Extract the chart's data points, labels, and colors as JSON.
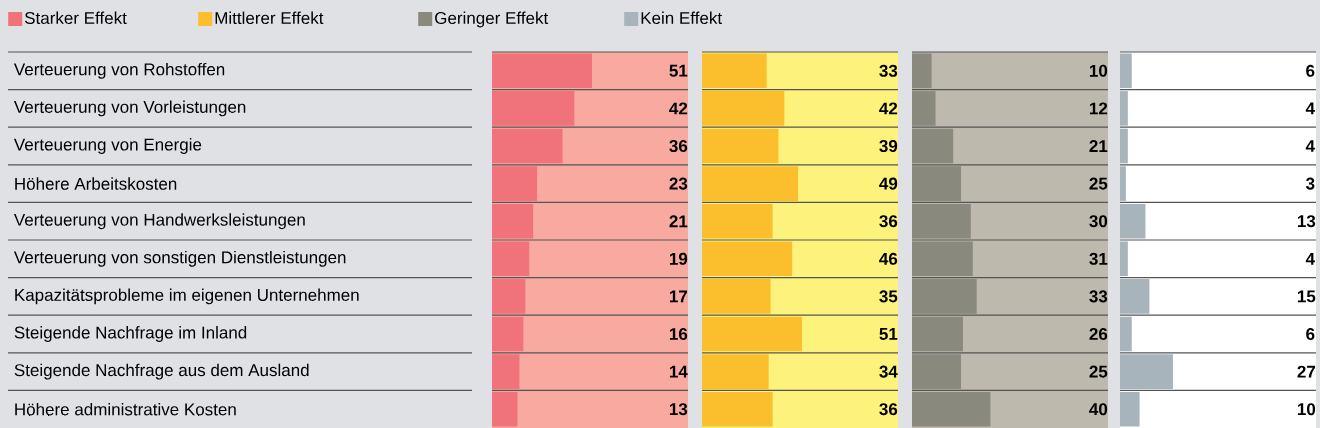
{
  "chart_data": [
    {
      "type": "bar",
      "orientation": "horizontal",
      "categories": [
        "Verteuerung von Rohstoffen",
        "Verteuerung von Vorleistungen",
        "Verteuerung von Energie",
        "Höhere Arbeitskosten",
        "Verteuerung von Handwerksleistungen",
        "Verteuerung von sonstigen Dienstleistungen",
        "Kapazitätsprobleme im eigenen Unternehmen",
        "Steigende Nachfrage im Inland",
        "Steigende Nachfrage aus dem Ausland",
        "Höhere administrative Kosten"
      ],
      "series": [
        {
          "name": "Starker Effekt",
          "color": "#f0727a",
          "values": [
            51,
            42,
            36,
            23,
            21,
            19,
            17,
            16,
            14,
            13
          ]
        }
      ],
      "xlim": [
        0,
        100
      ],
      "tick_labels": "y",
      "data_labels": true,
      "legend": "top"
    },
    {
      "type": "bar",
      "orientation": "horizontal",
      "categories": [
        null,
        null,
        null,
        null,
        null,
        null,
        null,
        null,
        null,
        null
      ],
      "series": [
        {
          "name": "Mittlerer Effekt",
          "color": "#fbbf2e",
          "values": [
            33,
            42,
            39,
            49,
            36,
            46,
            35,
            51,
            34,
            36
          ]
        }
      ],
      "xlim": [
        0,
        100
      ],
      "tick_labels": false,
      "data_labels": true,
      "legend": "top"
    },
    {
      "type": "bar",
      "orientation": "horizontal",
      "categories": [
        null,
        null,
        null,
        null,
        null,
        null,
        null,
        null,
        null,
        null
      ],
      "series": [
        {
          "name": "Geringer Effekt",
          "color": "#8a897d",
          "values": [
            10,
            12,
            21,
            25,
            30,
            31,
            33,
            26,
            25,
            40
          ]
        }
      ],
      "xlim": [
        0,
        100
      ],
      "tick_labels": false,
      "data_labels": true,
      "legend": "top"
    },
    {
      "type": "bar",
      "orientation": "horizontal",
      "categories": [
        null,
        null,
        null,
        null,
        null,
        null,
        null,
        null,
        null,
        null
      ],
      "series": [
        {
          "name": "Kein Effekt",
          "color": "#a7b4bc",
          "values": [
            6,
            4,
            4,
            3,
            13,
            4,
            15,
            6,
            27,
            10
          ]
        }
      ],
      "xlim": [
        0,
        100
      ],
      "tick_labels": false,
      "data_labels": true,
      "legend": "top"
    }
  ]
}
